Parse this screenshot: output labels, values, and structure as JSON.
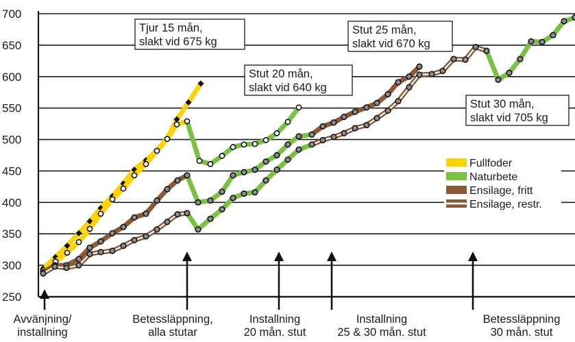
{
  "chart_data": {
    "type": "line",
    "title": "",
    "xlabel": "",
    "ylabel": "",
    "ylim": [
      250,
      700
    ],
    "yticks": [
      "250",
      "300",
      "350",
      "400",
      "450",
      "500",
      "550",
      "600",
      "650",
      "700"
    ],
    "xlim": [
      0,
      839
    ],
    "grid": true,
    "colors": {
      "Fullfoder": "#fcd200",
      "Naturbete": "#79c143",
      "Ensilage, fritt": "#8b5a34",
      "Ensilage, restr.": "#8b5a34",
      "marker_black": "#111111",
      "marker_white": "#ffffff"
    },
    "legend": {
      "position": "right",
      "entries": [
        {
          "label": "Fullfoder",
          "color": "#fcd200",
          "style": "solid"
        },
        {
          "label": "Naturbete",
          "color": "#79c143",
          "style": "solid"
        },
        {
          "label": "Ensilage, fritt",
          "color": "#8b5a34",
          "style": "solid"
        },
        {
          "label": "Ensilage, restr.",
          "color": "#8b5a34",
          "style": "double"
        }
      ]
    },
    "series": [
      {
        "name": "Tjur 15 mån, slakt vid 675 kg",
        "marker": "black",
        "segments": [
          {
            "feed": "Fullfoder",
            "points": [
              [
                63,
                295
              ],
              [
                81,
                313
              ],
              [
                98,
                331
              ],
              [
                115,
                351
              ],
              [
                131,
                370
              ],
              [
                147,
                391
              ],
              [
                164,
                410
              ],
              [
                180,
                430
              ],
              [
                196,
                452
              ],
              [
                213,
                467
              ],
              [
                229,
                483
              ],
              [
                244,
                502
              ],
              [
                258,
                532
              ],
              [
                275,
                559
              ],
              [
                293,
                589
              ]
            ]
          }
        ]
      },
      {
        "name": "Stut 20 mån, slakt vid 640 kg",
        "marker": "white",
        "segments": [
          {
            "feed": "Fullfoder",
            "points": [
              [
                63,
                292
              ],
              [
                81,
                306
              ],
              [
                98,
                320
              ],
              [
                115,
                337
              ],
              [
                131,
                358
              ],
              [
                147,
                382
              ],
              [
                164,
                405
              ],
              [
                180,
                422
              ],
              [
                196,
                443
              ],
              [
                213,
                461
              ],
              [
                229,
                482
              ],
              [
                244,
                501
              ],
              [
                258,
                524
              ],
              [
                273,
                529
              ]
            ]
          },
          {
            "feed": "Naturbete",
            "points": [
              [
                273,
                529
              ],
              [
                291,
                466
              ],
              [
                307,
                461
              ],
              [
                324,
                474
              ],
              [
                340,
                488
              ],
              [
                356,
                492
              ],
              [
                372,
                493
              ],
              [
                388,
                499
              ],
              [
                404,
                510
              ],
              [
                420,
                528
              ],
              [
                436,
                551
              ]
            ]
          }
        ]
      },
      {
        "name": "Stut 25 mån, slakt vid 670 kg",
        "marker": "gray",
        "segments": [
          {
            "feed": "Ensilage, fritt",
            "points": [
              [
                63,
                289
              ],
              [
                80,
                300
              ],
              [
                97,
                300
              ],
              [
                115,
                310
              ],
              [
                131,
                328
              ],
              [
                147,
                338
              ],
              [
                164,
                351
              ],
              [
                180,
                361
              ],
              [
                196,
                376
              ],
              [
                213,
                382
              ],
              [
                229,
                403
              ],
              [
                244,
                421
              ],
              [
                259,
                435
              ],
              [
                273,
                443
              ]
            ]
          },
          {
            "feed": "Naturbete",
            "points": [
              [
                273,
                443
              ],
              [
                289,
                400
              ],
              [
                307,
                403
              ],
              [
                324,
                417
              ],
              [
                340,
                443
              ],
              [
                356,
                448
              ],
              [
                372,
                452
              ],
              [
                388,
                465
              ],
              [
                404,
                475
              ],
              [
                420,
                492
              ],
              [
                436,
                505
              ],
              [
                455,
                508
              ]
            ]
          },
          {
            "feed": "Ensilage, fritt",
            "points": [
              [
                455,
                508
              ],
              [
                471,
                521
              ],
              [
                487,
                527
              ],
              [
                502,
                536
              ],
              [
                518,
                544
              ],
              [
                535,
                551
              ],
              [
                550,
                558
              ],
              [
                566,
                572
              ],
              [
                581,
                591
              ],
              [
                597,
                600
              ],
              [
                612,
                616
              ]
            ]
          }
        ]
      },
      {
        "name": "Stut 30 mån, slakt vid 705 kg",
        "marker": "gray",
        "segments": [
          {
            "feed": "Ensilage, restr.",
            "points": [
              [
                63,
                287
              ],
              [
                80,
                298
              ],
              [
                97,
                296
              ],
              [
                115,
                300
              ],
              [
                131,
                318
              ],
              [
                147,
                321
              ],
              [
                164,
                323
              ],
              [
                180,
                331
              ],
              [
                196,
                340
              ],
              [
                213,
                346
              ],
              [
                229,
                357
              ],
              [
                244,
                369
              ],
              [
                259,
                381
              ],
              [
                273,
                383
              ]
            ]
          },
          {
            "feed": "Naturbete",
            "points": [
              [
                273,
                383
              ],
              [
                289,
                357
              ],
              [
                307,
                374
              ],
              [
                324,
                389
              ],
              [
                340,
                407
              ],
              [
                356,
                414
              ],
              [
                372,
                416
              ],
              [
                388,
                435
              ],
              [
                404,
                452
              ],
              [
                420,
                468
              ],
              [
                436,
                484
              ],
              [
                455,
                492
              ]
            ]
          },
          {
            "feed": "Ensilage, restr.",
            "points": [
              [
                455,
                492
              ],
              [
                471,
                499
              ],
              [
                487,
                504
              ],
              [
                502,
                510
              ],
              [
                518,
                518
              ],
              [
                535,
                523
              ],
              [
                550,
                534
              ],
              [
                566,
                546
              ],
              [
                581,
                561
              ],
              [
                597,
                583
              ],
              [
                612,
                603
              ],
              [
                630,
                604
              ],
              [
                646,
                609
              ],
              [
                662,
                628
              ],
              [
                679,
                627
              ],
              [
                694,
                647
              ],
              [
                710,
                641
              ]
            ]
          },
          {
            "feed": "Naturbete",
            "points": [
              [
                710,
                641
              ],
              [
                727,
                595
              ],
              [
                743,
                606
              ],
              [
                759,
                628
              ],
              [
                775,
                656
              ],
              [
                791,
                655
              ],
              [
                807,
                666
              ],
              [
                823,
                688
              ],
              [
                839,
                694
              ]
            ]
          }
        ]
      }
    ],
    "callouts": [
      {
        "lines": [
          "Tjur 15 mån,",
          "slakt vid 675 kg"
        ]
      },
      {
        "lines": [
          "Stut 20 mån,",
          "slakt vid 640 kg"
        ]
      },
      {
        "lines": [
          "Stut 25 mån,",
          "slakt vid 670 kg"
        ]
      },
      {
        "lines": [
          "Stut 30 mån,",
          "slakt vid 705 kg"
        ]
      }
    ],
    "annotations": [
      {
        "lines": [
          "Avvänjning/",
          "installning"
        ]
      },
      {
        "lines": [
          "Betessläppning,",
          "alla stutar"
        ]
      },
      {
        "lines": [
          "Installning",
          "20 mån. stut"
        ]
      },
      {
        "lines": [
          "Installning",
          "25 & 30 mån. stut"
        ]
      },
      {
        "lines": [
          "Betessläppning",
          "30 mån. stut"
        ]
      }
    ]
  }
}
